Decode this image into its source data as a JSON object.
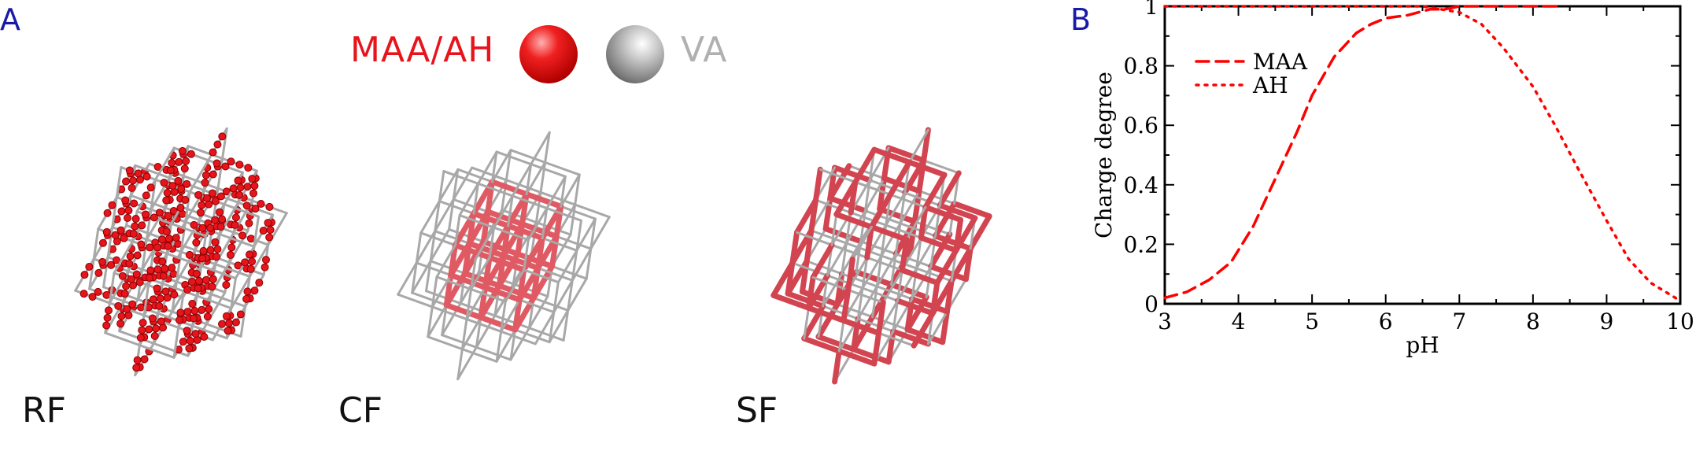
{
  "panels": {
    "a": "A",
    "b": "B"
  },
  "legend": {
    "charged_label": "MAA/AH",
    "neutral_label": "VA",
    "charged_color": "#e8141c",
    "neutral_color": "#a8a8a8"
  },
  "networks": [
    {
      "label": "RF"
    },
    {
      "label": "CF"
    },
    {
      "label": "SF"
    }
  ],
  "chart_data": {
    "type": "line",
    "xlabel": "pH",
    "ylabel": "Charge degree",
    "xlim": [
      3,
      10
    ],
    "ylim": [
      0,
      1
    ],
    "xticks": [
      "3",
      "4",
      "5",
      "6",
      "7",
      "8",
      "9",
      "10"
    ],
    "yticks": [
      "0",
      "0.2",
      "0.4",
      "0.6",
      "0.8",
      "1"
    ],
    "legend_position": "top-left",
    "grid": false,
    "series_color": "#ff0000",
    "series": [
      {
        "name": "MAA",
        "style": "dashed",
        "x": [
          3.0,
          3.3,
          3.6,
          3.9,
          4.2,
          4.5,
          4.8,
          5.0,
          5.3,
          5.6,
          5.8,
          6.0,
          6.3,
          6.6,
          6.8,
          7.0,
          7.3,
          7.6,
          8.0,
          8.4
        ],
        "y": [
          0.02,
          0.04,
          0.08,
          0.14,
          0.26,
          0.42,
          0.58,
          0.7,
          0.83,
          0.91,
          0.94,
          0.96,
          0.97,
          0.99,
          0.99,
          1.0,
          1.0,
          1.0,
          1.0,
          1.0
        ]
      },
      {
        "name": "AH",
        "style": "dotted",
        "x": [
          3.0,
          4.0,
          5.0,
          6.0,
          6.5,
          7.0,
          7.3,
          7.6,
          8.0,
          8.3,
          8.6,
          9.0,
          9.3,
          9.6,
          10.0
        ],
        "y": [
          1.0,
          1.0,
          1.0,
          1.0,
          1.0,
          0.98,
          0.94,
          0.86,
          0.73,
          0.6,
          0.46,
          0.28,
          0.15,
          0.07,
          0.01
        ]
      }
    ]
  }
}
